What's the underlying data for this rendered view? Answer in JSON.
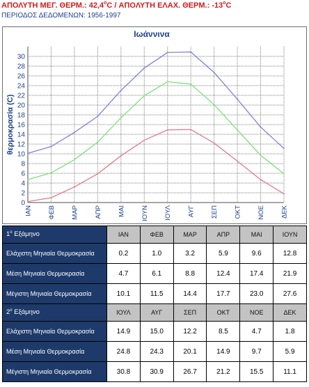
{
  "header": {
    "max_prefix": "ΑΠΟΛΥΤΗ ΜΕΓ. ΘΕΡΜ.: 42,4",
    "deg_sup_1": "ο",
    "max_unit": "C",
    "separator": " / ",
    "min_prefix": "ΑΠΟΛΥΤΗ ΕΛΑΧ. ΘΕΡΜ.: -13",
    "deg_sup_2": "ο",
    "min_unit": "C",
    "period": "ΠΕΡΙΟΔΟΣ ΔΕΔΟΜΕΝΩΝ: 1956-1997"
  },
  "colors": {
    "header_red": "#d21a1a",
    "header_blue": "#1c3f8f",
    "table_label_bg": "#1e3a6a",
    "table_month_bg": "#c3c3c3",
    "series_max": "#8080e0",
    "series_mean": "#7ae07a",
    "series_min": "#e07a8a"
  },
  "chart_data": {
    "type": "line",
    "title": "Ιωάννινα",
    "xlabel": "",
    "ylabel": "θερμοκρασία (C)",
    "ylim": [
      0,
      32
    ],
    "yticks": [
      0,
      2,
      4,
      6,
      8,
      10,
      12,
      14,
      16,
      18,
      20,
      22,
      24,
      26,
      28,
      30
    ],
    "grid": true,
    "categories": [
      "ΙΑΝ",
      "ΦΕΒ",
      "ΜΑΡ",
      "ΑΠΡ",
      "ΜΑΙ",
      "ΙΟΥΝ",
      "ΙΟΥΛ",
      "ΑΥΓ",
      "ΣΕΠ",
      "ΟΚΤ",
      "ΝΟΕ",
      "ΔΕΚ"
    ],
    "series": [
      {
        "color": "#8080e0",
        "values": [
          10.1,
          11.5,
          14.4,
          17.7,
          23.0,
          27.6,
          30.8,
          30.9,
          26.7,
          21.2,
          15.5,
          11.1
        ]
      },
      {
        "color": "#7ae07a",
        "values": [
          4.7,
          6.1,
          8.8,
          12.4,
          17.4,
          21.9,
          24.8,
          24.3,
          20.1,
          14.9,
          9.7,
          5.9
        ]
      },
      {
        "color": "#e07a8a",
        "values": [
          0.2,
          1.0,
          3.2,
          5.9,
          9.6,
          12.8,
          14.9,
          15.0,
          12.2,
          8.5,
          4.7,
          1.8
        ]
      }
    ]
  },
  "table": {
    "semester1": {
      "num": "1",
      "sup": "ο",
      "word": " Εξάμηνο",
      "months": [
        "ΙΑΝ",
        "ΦΕΒ",
        "ΜΑΡ",
        "ΑΠΡ",
        "ΜΑΙ",
        "ΙΟΥΝ"
      ],
      "rows": [
        {
          "label": "Ελάχιστη Μηνιαία Θερμοκρασία",
          "values": [
            "0.2",
            "1.0",
            "3.2",
            "5.9",
            "9.6",
            "12.8"
          ]
        },
        {
          "label": "Μέση Μηνιαία Θερμοκρασία",
          "values": [
            "4.7",
            "6.1",
            "8.8",
            "12.4",
            "17.4",
            "21.9"
          ]
        },
        {
          "label": "Μέγιστη Μηνιαία Θερμοκρασία",
          "values": [
            "10.1",
            "11.5",
            "14.4",
            "17.7",
            "23.0",
            "27.6"
          ]
        }
      ]
    },
    "semester2": {
      "num": "2",
      "sup": "ο",
      "word": " Εξάμηνο",
      "months": [
        "ΙΟΥΛ",
        "ΑΥΓ",
        "ΣΕΠ",
        "ΟΚΤ",
        "ΝΟΕ",
        "ΔΕΚ"
      ],
      "rows": [
        {
          "label": "Ελάχιστη Μηνιαία Θερμοκρασία",
          "values": [
            "14.9",
            "15.0",
            "12.2",
            "8.5",
            "4.7",
            "1.8"
          ]
        },
        {
          "label": "Μέση Μηνιαία Θερμοκρασία",
          "values": [
            "24.8",
            "24.3",
            "20.1",
            "14.9",
            "9.7",
            "5.9"
          ]
        },
        {
          "label": "Μέγιστη Μηνιαία Θερμοκρασία",
          "values": [
            "30.8",
            "30.9",
            "26.7",
            "21.2",
            "15.5",
            "11.1"
          ]
        }
      ]
    }
  }
}
